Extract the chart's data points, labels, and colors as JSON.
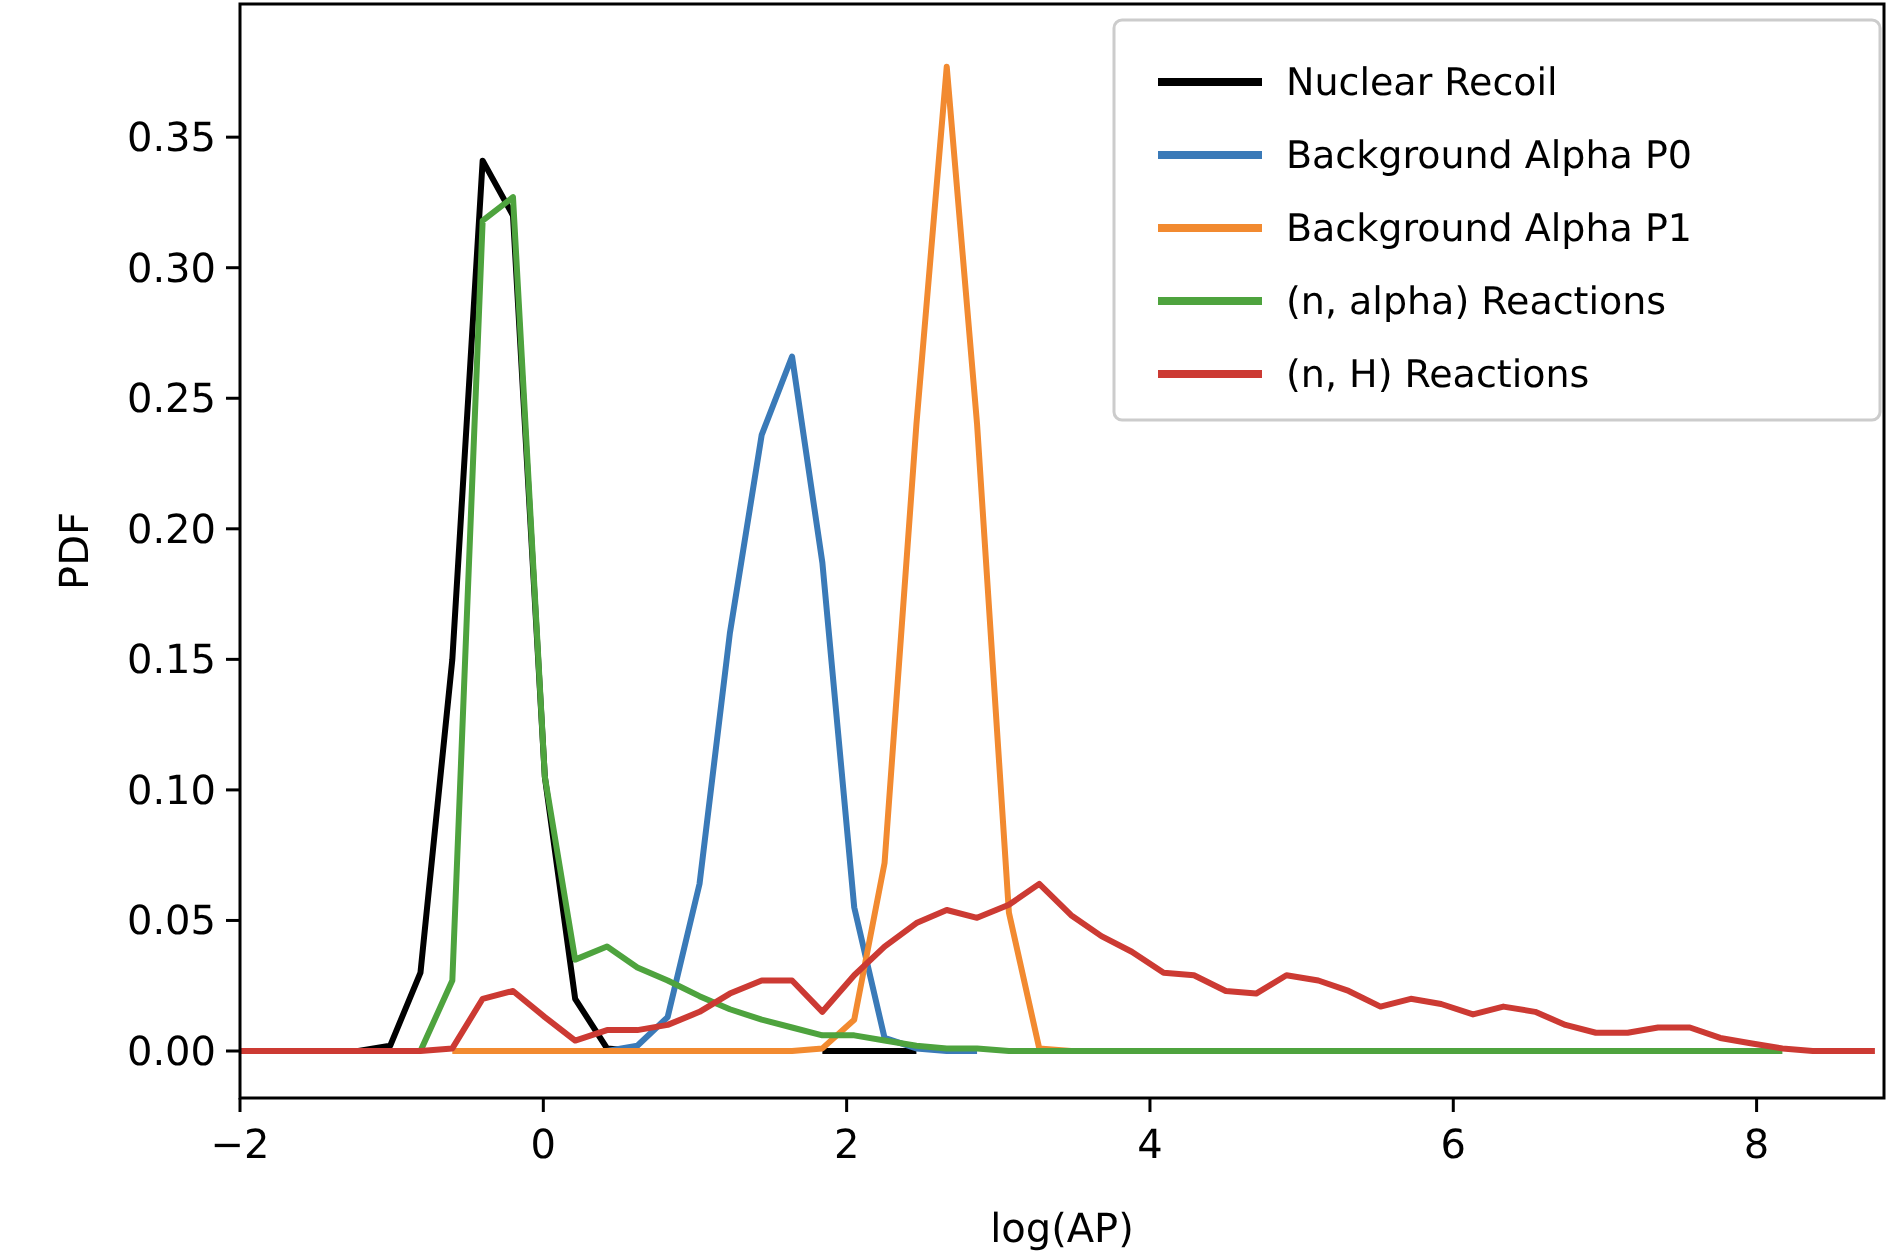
{
  "chart_data": {
    "type": "line",
    "xlabel": "log(AP)",
    "ylabel": "PDF",
    "x": [
      -2.0,
      -1.83,
      -1.62,
      -1.42,
      -1.22,
      -1.01,
      -0.81,
      -0.6,
      -0.4,
      -0.2,
      0.01,
      0.21,
      0.42,
      0.62,
      0.82,
      1.03,
      1.23,
      1.44,
      1.64,
      1.84,
      2.05,
      2.25,
      2.46,
      2.66,
      2.86,
      3.07,
      3.27,
      3.48,
      3.68,
      3.88,
      4.09,
      4.29,
      4.5,
      4.7,
      4.9,
      5.11,
      5.31,
      5.52,
      5.72,
      5.92,
      6.13,
      6.33,
      6.54,
      6.74,
      6.94,
      7.15,
      7.35,
      7.56,
      7.76,
      7.96,
      8.17,
      8.37,
      8.58,
      8.78
    ],
    "series": [
      {
        "name": "Nuclear Recoil",
        "color": "#000000",
        "values": [
          null,
          null,
          null,
          null,
          0,
          0.002,
          0.03,
          0.15,
          0.341,
          0.32,
          0.105,
          0.02,
          0.001,
          0,
          null,
          null,
          null,
          null,
          null,
          0,
          0,
          0,
          0,
          null,
          null,
          null,
          null,
          null,
          null,
          null,
          null,
          null,
          null,
          null,
          null,
          null,
          null,
          null,
          null,
          null,
          null,
          null,
          null,
          null,
          null,
          null,
          null,
          null,
          null,
          null,
          null,
          null,
          null,
          null
        ]
      },
      {
        "name": "Background Alpha P0",
        "color": "#3a7ab8",
        "values": [
          null,
          null,
          null,
          null,
          null,
          null,
          null,
          null,
          null,
          null,
          null,
          null,
          0,
          0.002,
          0.013,
          0.064,
          0.16,
          0.236,
          0.266,
          0.187,
          0.055,
          0.005,
          0.001,
          0,
          0,
          null,
          null,
          null,
          null,
          null,
          null,
          null,
          null,
          null,
          null,
          null,
          null,
          null,
          null,
          null,
          null,
          null,
          null,
          null,
          null,
          null,
          null,
          null,
          null,
          null,
          null,
          null,
          null,
          null
        ]
      },
      {
        "name": "Background Alpha P1",
        "color": "#f28a30",
        "values": [
          null,
          null,
          null,
          null,
          null,
          null,
          null,
          0,
          0,
          0,
          0,
          0,
          0,
          0,
          0,
          0,
          0,
          0,
          0,
          0.001,
          0.012,
          0.072,
          0.24,
          0.377,
          0.24,
          0.053,
          0.001,
          0,
          null,
          null,
          null,
          null,
          null,
          null,
          null,
          null,
          null,
          null,
          null,
          null,
          null,
          null,
          null,
          null,
          null,
          null,
          null,
          null,
          null,
          null,
          null,
          null,
          null,
          null
        ]
      },
      {
        "name": "(n, alpha) Reactions",
        "color": "#4ea33e",
        "values": [
          null,
          null,
          null,
          null,
          null,
          null,
          0,
          0.027,
          0.318,
          0.327,
          0.105,
          0.035,
          0.04,
          0.032,
          0.027,
          0.021,
          0.016,
          0.012,
          0.009,
          0.006,
          0.006,
          0.004,
          0.002,
          0.001,
          0.001,
          0,
          0,
          0,
          0,
          0,
          0,
          0,
          0,
          0,
          0,
          0,
          0,
          0,
          0,
          0,
          0,
          0,
          0,
          0,
          0,
          0,
          0,
          0,
          0,
          0,
          0,
          null,
          null,
          null
        ]
      },
      {
        "name": "(n, H) Reactions",
        "color": "#cc3a33",
        "values": [
          0,
          0,
          0,
          0,
          0,
          0,
          0,
          0.001,
          0.02,
          0.023,
          0.013,
          0.004,
          0.008,
          0.008,
          0.01,
          0.015,
          0.022,
          0.027,
          0.027,
          0.015,
          0.029,
          0.04,
          0.049,
          0.054,
          0.051,
          0.056,
          0.064,
          0.052,
          0.044,
          0.038,
          0.03,
          0.029,
          0.023,
          0.022,
          0.029,
          0.027,
          0.023,
          0.017,
          0.02,
          0.018,
          0.014,
          0.017,
          0.015,
          0.01,
          0.007,
          0.007,
          0.009,
          0.009,
          0.005,
          0.003,
          0.001,
          0,
          0,
          0
        ]
      }
    ],
    "xlim": [
      -2,
      8.84
    ],
    "ylim": [
      -0.018,
      0.401
    ],
    "xticks": [
      {
        "value": -2,
        "label": "−2"
      },
      0,
      2,
      4,
      6,
      8
    ],
    "yticks": [
      {
        "value": 0,
        "label": "0.00"
      },
      {
        "value": 0.05,
        "label": "0.05"
      },
      {
        "value": 0.1,
        "label": "0.10"
      },
      {
        "value": 0.15,
        "label": "0.15"
      },
      {
        "value": 0.2,
        "label": "0.20"
      },
      {
        "value": 0.25,
        "label": "0.25"
      },
      {
        "value": 0.3,
        "label": "0.30"
      },
      {
        "value": 0.35,
        "label": "0.35"
      }
    ],
    "grid": false,
    "legend": "top right",
    "marker": "none",
    "line_style": "solid"
  }
}
